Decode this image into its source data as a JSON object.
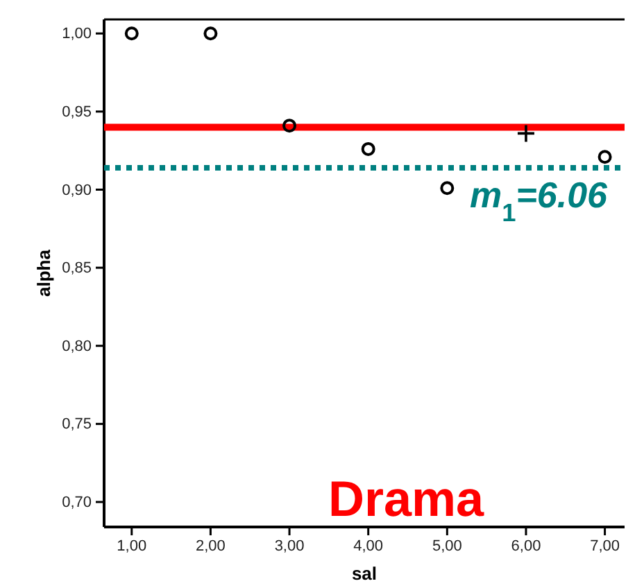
{
  "chart_data": {
    "type": "scatter",
    "xlabel": "sal",
    "ylabel": "alpha",
    "xlim": [
      0.65,
      7.25
    ],
    "ylim": [
      0.684,
      1.009
    ],
    "xticks": [
      {
        "value": 1,
        "label": "1,00"
      },
      {
        "value": 2,
        "label": "2,00"
      },
      {
        "value": 3,
        "label": "3,00"
      },
      {
        "value": 4,
        "label": "4,00"
      },
      {
        "value": 5,
        "label": "5,00"
      },
      {
        "value": 6,
        "label": "6,00"
      },
      {
        "value": 7,
        "label": "7,00"
      }
    ],
    "yticks": [
      {
        "value": 0.7,
        "label": "0,70"
      },
      {
        "value": 0.75,
        "label": "0,75"
      },
      {
        "value": 0.8,
        "label": "0,80"
      },
      {
        "value": 0.85,
        "label": "0,85"
      },
      {
        "value": 0.9,
        "label": "0,90"
      },
      {
        "value": 0.95,
        "label": "0,95"
      },
      {
        "value": 1,
        "label": "1,00"
      }
    ],
    "series": [
      {
        "color": "#000000",
        "marker": "circle",
        "x": [
          1,
          2,
          3,
          4,
          5,
          7
        ],
        "values": [
          1.0,
          1.0,
          0.941,
          0.926,
          0.901,
          0.921
        ]
      },
      {
        "color": "#000000",
        "marker": "cross",
        "x": [
          6
        ],
        "values": [
          0.936
        ]
      }
    ],
    "ref_lines": [
      {
        "axis": "y",
        "value": 0.94,
        "color": "#ff0000",
        "line_style": "solid"
      },
      {
        "axis": "y",
        "value": 0.914,
        "color": "#008080",
        "line_style": "dotted"
      }
    ],
    "annotations": [
      "m$_{1}$=6.06",
      "Drama"
    ],
    "grid": false
  }
}
